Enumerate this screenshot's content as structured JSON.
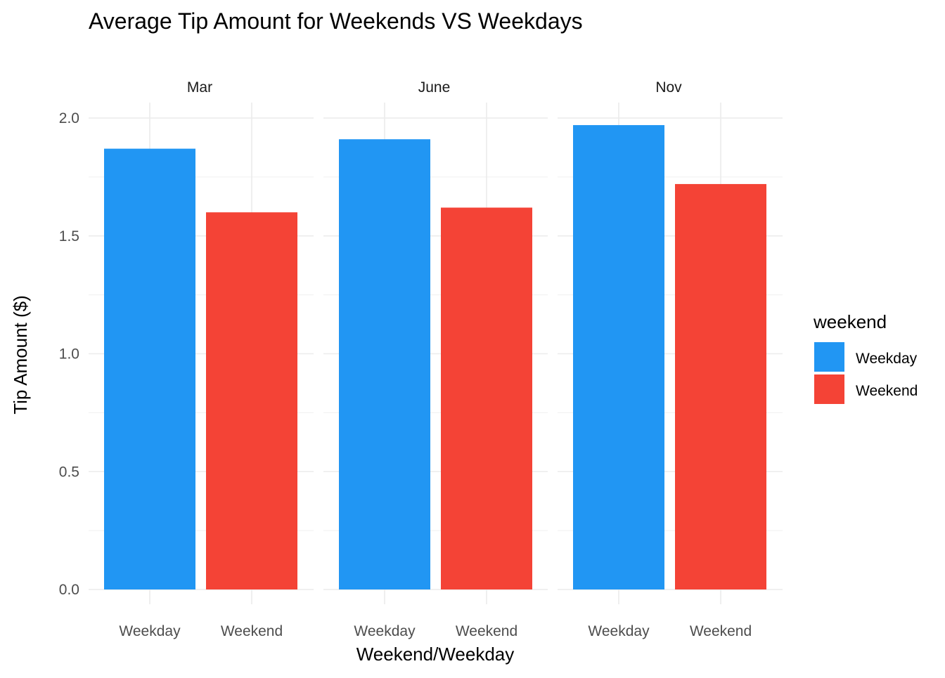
{
  "chart_data": {
    "type": "bar",
    "title": "Average Tip Amount for Weekends VS Weekdays",
    "xlabel": "Weekend/Weekday",
    "ylabel": "Tip Amount ($)",
    "ylim": [
      0,
      2.05
    ],
    "y_ticks": [
      0.0,
      0.5,
      1.0,
      1.5,
      2.0
    ],
    "y_tick_labels": [
      "0.0",
      "0.5",
      "1.0",
      "1.5",
      "2.0"
    ],
    "categories": [
      "Weekday",
      "Weekend"
    ],
    "grid": true,
    "legend": {
      "title": "weekend",
      "position": "right",
      "entries": [
        {
          "label": "Weekday",
          "color": "#2196F3"
        },
        {
          "label": "Weekend",
          "color": "#F44336"
        }
      ]
    },
    "facets": [
      {
        "label": "Mar",
        "values": [
          1.87,
          1.6
        ]
      },
      {
        "label": "June",
        "values": [
          1.91,
          1.62
        ]
      },
      {
        "label": "Nov",
        "values": [
          1.97,
          1.72
        ]
      }
    ],
    "colors": {
      "Weekday": "#2196F3",
      "Weekend": "#F44336"
    }
  }
}
